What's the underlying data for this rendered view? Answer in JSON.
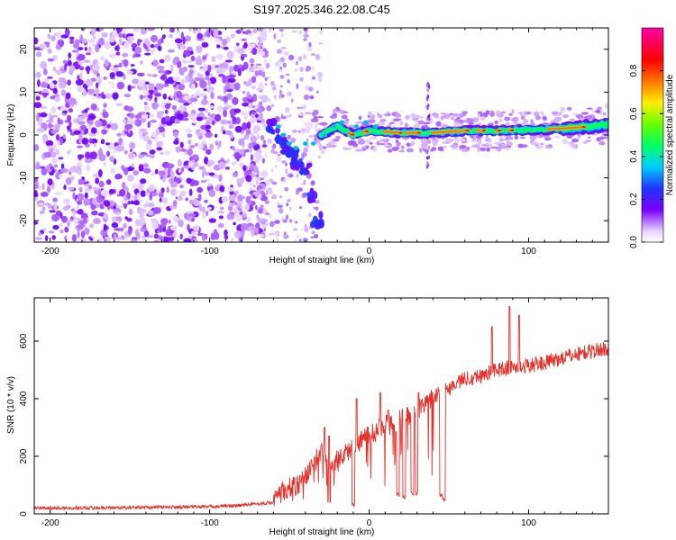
{
  "title": "S197.2025.346.22.08.C45",
  "chart_data": [
    {
      "type": "heatmap",
      "xlabel": "Height of straight line (km)",
      "ylabel": "Frequency (Hz)",
      "xlim": [
        -210,
        150
      ],
      "ylim": [
        -25,
        25
      ],
      "xticks": [
        -200,
        -100,
        0,
        100
      ],
      "yticks": [
        -20,
        -10,
        0,
        10,
        20
      ],
      "colorbar": {
        "label": "Normalized spectral amplitude",
        "range": [
          0.0,
          1.0
        ],
        "ticks": [
          0.0,
          0.2,
          0.4,
          0.6,
          0.8
        ],
        "colormap": "rainbow (violet-blue-cyan-green-yellow-red-magenta)"
      },
      "features": {
        "noise_region_x": [
          -210,
          -70
        ],
        "noise_center_freq": 0,
        "dispersive_branch": [
          [
            -60,
            2
          ],
          [
            -55,
            -1
          ],
          [
            -52,
            -3
          ],
          [
            -48,
            -5
          ],
          [
            -45,
            -6
          ],
          [
            -40,
            -8
          ],
          [
            -35,
            -14
          ],
          [
            -33,
            -20
          ]
        ],
        "tone_track": [
          [
            -30,
            0
          ],
          [
            -20,
            2
          ],
          [
            -10,
            0
          ],
          [
            0,
            1
          ],
          [
            20,
            0.5
          ],
          [
            40,
            0.5
          ],
          [
            60,
            1
          ],
          [
            80,
            1
          ],
          [
            100,
            1.2
          ],
          [
            120,
            1.5
          ],
          [
            140,
            2
          ],
          [
            150,
            2.5
          ]
        ],
        "tone_peak_amplitude": 0.85
      }
    },
    {
      "type": "line",
      "xlabel": "Height of straight line (km)",
      "ylabel": "SNR (10 * v/v)",
      "xlim": [
        -210,
        150
      ],
      "ylim": [
        0,
        750
      ],
      "xticks": [
        -200,
        -100,
        0,
        100
      ],
      "yticks": [
        0,
        200,
        400,
        600
      ],
      "color": "#e8302a",
      "series": [
        {
          "name": "SNR",
          "points": [
            [
              -210,
              20
            ],
            [
              -150,
              22
            ],
            [
              -100,
              25
            ],
            [
              -80,
              30
            ],
            [
              -70,
              35
            ],
            [
              -60,
              40
            ],
            [
              -55,
              75
            ],
            [
              -50,
              90
            ],
            [
              -45,
              100
            ],
            [
              -40,
              130
            ],
            [
              -35,
              170
            ],
            [
              -30,
              220
            ],
            [
              -25,
              160
            ],
            [
              -20,
              190
            ],
            [
              -15,
              210
            ],
            [
              -10,
              230
            ],
            [
              -5,
              260
            ],
            [
              0,
              270
            ],
            [
              5,
              290
            ],
            [
              10,
              320
            ],
            [
              15,
              300
            ],
            [
              20,
              330
            ],
            [
              25,
              340
            ],
            [
              30,
              360
            ],
            [
              35,
              390
            ],
            [
              40,
              405
            ],
            [
              45,
              420
            ],
            [
              50,
              435
            ],
            [
              55,
              455
            ],
            [
              60,
              470
            ],
            [
              70,
              480
            ],
            [
              80,
              500
            ],
            [
              90,
              510
            ],
            [
              100,
              515
            ],
            [
              110,
              525
            ],
            [
              120,
              540
            ],
            [
              130,
              555
            ],
            [
              140,
              565
            ],
            [
              150,
              575
            ]
          ]
        }
      ],
      "dips": [
        [
          -25,
          30
        ],
        [
          -10,
          25
        ],
        [
          18,
          60
        ],
        [
          22,
          50
        ],
        [
          27,
          60
        ],
        [
          30,
          60
        ],
        [
          45,
          60
        ],
        [
          47,
          45
        ]
      ],
      "spikes": [
        [
          -28,
          300
        ],
        [
          -25,
          270
        ],
        [
          -8,
          400
        ],
        [
          7,
          420
        ],
        [
          12,
          360
        ],
        [
          31,
          420
        ],
        [
          52,
          460
        ],
        [
          77,
          650
        ],
        [
          88,
          720
        ],
        [
          94,
          690
        ]
      ]
    }
  ]
}
